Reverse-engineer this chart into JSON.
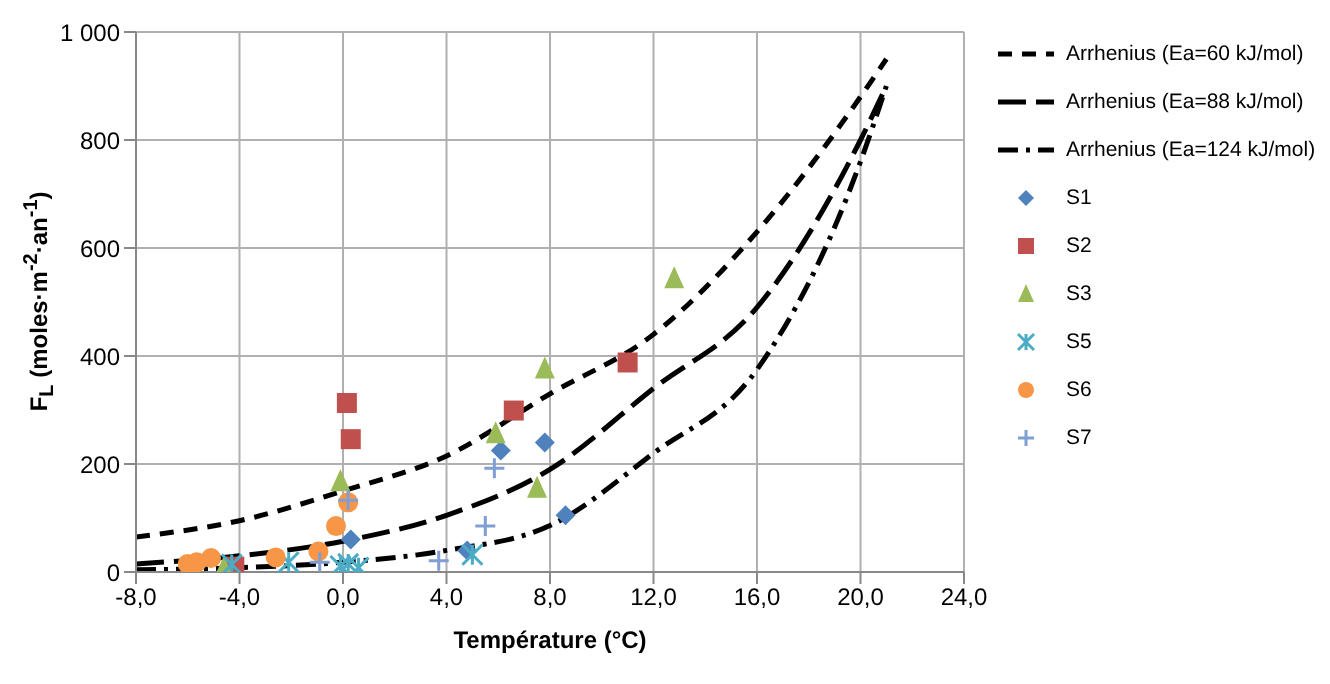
{
  "chart_data": {
    "type": "scatter",
    "xlabel": "Température (°C)",
    "ylabel": "F$_{L}$ (moles·m$^{-2}$·an$^{-1}$)",
    "xlim": [
      -8,
      24
    ],
    "xticks": [
      {
        "value": -8,
        "label": "-8,0"
      },
      {
        "value": -4,
        "label": "-4,0"
      },
      {
        "value": 0,
        "label": "0,0"
      },
      {
        "value": 4,
        "label": "4,0"
      },
      {
        "value": 8,
        "label": "8,0"
      },
      {
        "value": 12,
        "label": "12,0"
      },
      {
        "value": 16,
        "label": "16,0"
      },
      {
        "value": 20,
        "label": "20,0"
      },
      {
        "value": 24,
        "label": "24,0"
      }
    ],
    "ylim": [
      0,
      1000
    ],
    "yticks": [
      0,
      200,
      400,
      600,
      800,
      {
        "value": 1000,
        "label": "1 000"
      }
    ],
    "grid": true,
    "legend": "right",
    "series": [
      {
        "name": "Arrhenius (Ea=60 kJ/mol)",
        "type": "line",
        "line_style": "dashed",
        "color": "#000000",
        "x": [
          -8,
          -4,
          0,
          4,
          8,
          12,
          16,
          20,
          21
        ],
        "values": [
          65,
          95,
          150,
          215,
          330,
          440,
          630,
          880,
          950
        ]
      },
      {
        "name": "Arrhenius (Ea=88 kJ/mol)",
        "type": "line",
        "line_style": "dashed",
        "color": "#000000",
        "x": [
          -8,
          -4,
          0,
          4,
          8,
          12,
          16,
          20,
          21
        ],
        "values": [
          15,
          30,
          57,
          105,
          190,
          340,
          490,
          800,
          900
        ]
      },
      {
        "name": "Arrhenius (Ea=124 kJ/mol)",
        "type": "line",
        "line_style": "dotted",
        "color": "#000000",
        "x": [
          -8,
          -4,
          0,
          4,
          8,
          12,
          16,
          20,
          21
        ],
        "values": [
          4,
          8,
          18,
          40,
          86,
          220,
          375,
          760,
          900
        ]
      },
      {
        "name": "S1",
        "marker": "diamond",
        "color": "#4f81bd",
        "x": [
          0.3,
          4.8,
          6.1,
          7.8,
          8.6
        ],
        "values": [
          60,
          40,
          225,
          240,
          105
        ]
      },
      {
        "name": "S2",
        "marker": "square",
        "color": "#c0504d",
        "x": [
          -4.2,
          0.15,
          0.3,
          6.6,
          11.0
        ],
        "values": [
          10,
          313,
          246,
          299,
          388
        ]
      },
      {
        "name": "S3",
        "marker": "triangle",
        "color": "#9bbb59",
        "x": [
          -4.6,
          -0.1,
          5.9,
          7.5,
          7.8,
          12.8
        ],
        "values": [
          8,
          168,
          257,
          156,
          377,
          544
        ]
      },
      {
        "name": "S5",
        "marker": "cross",
        "color": "#4bacc6",
        "x": [
          -4.3,
          -2.1,
          -0.1,
          0.2,
          0.6,
          5.0
        ],
        "values": [
          14,
          18,
          11,
          15,
          8,
          32
        ]
      },
      {
        "name": "S6",
        "marker": "circle",
        "color": "#f79646",
        "x": [
          -6.0,
          -5.65,
          -5.1,
          -2.6,
          -0.95,
          -0.27,
          0.2
        ],
        "values": [
          15,
          18,
          26,
          27,
          38,
          85,
          129
        ]
      },
      {
        "name": "S7",
        "marker": "cross",
        "color": "#7f9fd4",
        "x": [
          -0.9,
          0.2,
          3.7,
          5.5,
          5.85
        ],
        "values": [
          18,
          133,
          21,
          85,
          192
        ]
      }
    ]
  }
}
